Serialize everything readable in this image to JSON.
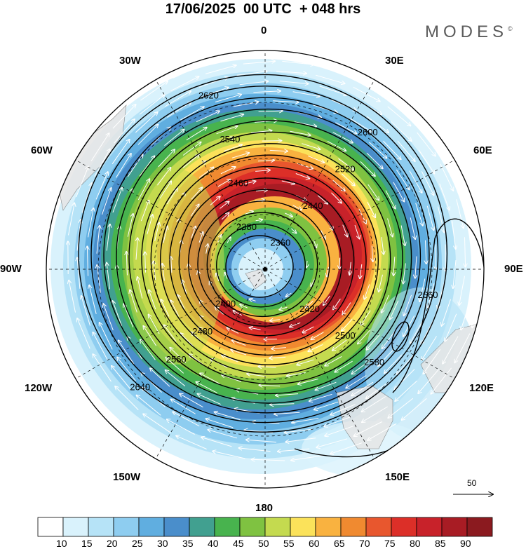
{
  "title": "17/06/2025  00 UTC  + 048 hrs",
  "brand": "MODES",
  "brand_mark": "©",
  "longitude_labels": {
    "l0": "0",
    "l30e": "30E",
    "l60e": "60E",
    "l90e": "90E",
    "l120e": "120E",
    "l150e": "150E",
    "l180": "180",
    "l150w": "150W",
    "l120w": "120W",
    "l90w": "90W",
    "l60w": "60W",
    "l30w": "30W"
  },
  "reference_vector": {
    "label": "50"
  },
  "contour_labels": [
    "2360",
    "2380",
    "2400",
    "2420",
    "2440",
    "2460",
    "2480",
    "2500",
    "2520",
    "2540",
    "2560",
    "2580",
    "2600",
    "2620",
    "2640",
    "2660"
  ],
  "colorbar": {
    "labels": [
      "10",
      "15",
      "20",
      "25",
      "30",
      "35",
      "40",
      "45",
      "50",
      "55",
      "60",
      "65",
      "70",
      "75",
      "80",
      "85",
      "90"
    ],
    "colors": [
      "#ffffff",
      "#d9f2fc",
      "#b6e3f7",
      "#8ecdf0",
      "#60aee0",
      "#4a8ecb",
      "#41a090",
      "#48b34e",
      "#7fc241",
      "#c4da4f",
      "#fbe25a",
      "#f9b240",
      "#f08a30",
      "#e8572e",
      "#dc2f28",
      "#c8222a",
      "#a81c24",
      "#8b1a1f"
    ]
  },
  "chart_data": {
    "type": "polar stereographic map",
    "projection": "south polar",
    "field_shaded": "wind speed",
    "field_contours": "geopotential height",
    "contour_levels": [
      2360,
      2380,
      2400,
      2420,
      2440,
      2460,
      2480,
      2500,
      2520,
      2540,
      2560,
      2580,
      2600,
      2620,
      2640,
      2660
    ],
    "shading_levels": [
      10,
      15,
      20,
      25,
      30,
      35,
      40,
      45,
      50,
      55,
      60,
      65,
      70,
      75,
      80,
      85,
      90
    ],
    "streamlines": true,
    "graticule": "dashed meridians every 30°, dashed latitude circles"
  }
}
